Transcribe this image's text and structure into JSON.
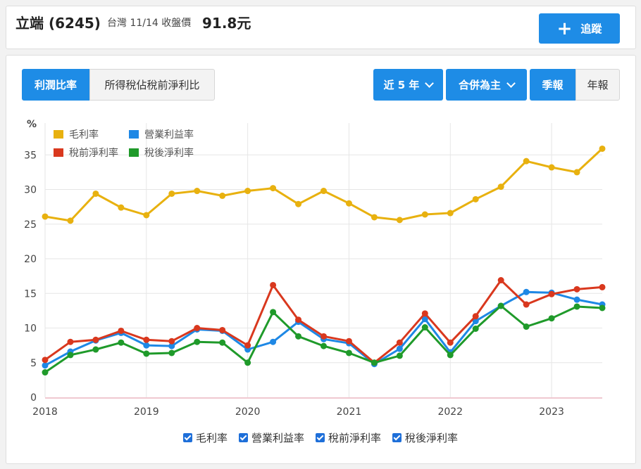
{
  "header": {
    "name": "立端",
    "code": "(6245)",
    "subtitle": "台灣 11/14 收盤價",
    "price": "91.8元",
    "follow_label": "追蹤"
  },
  "tabs": {
    "profit_ratio": "利潤比率",
    "tax_ratio": "所得稅佔稅前淨利比"
  },
  "controls": {
    "period": "近 5 年",
    "consolidation": "合併為主",
    "quarterly": "季報",
    "annual": "年報"
  },
  "colors": {
    "accent": "#1e8ce6",
    "gross": "#e8b10f",
    "operating": "#1e88e5",
    "pretax": "#d9381e",
    "aftertax": "#1f9a2a"
  },
  "chart_data": {
    "type": "line",
    "ylabel": "%",
    "ylim": [
      0,
      38
    ],
    "yticks": [
      0,
      5,
      10,
      15,
      20,
      25,
      30,
      35
    ],
    "xlim": [
      2018.0,
      2023.5
    ],
    "xticks": [
      "2018",
      "2019",
      "2020",
      "2021",
      "2022",
      "2023"
    ],
    "grid": true,
    "legend_position": "top-left",
    "x": [
      2018.0,
      2018.25,
      2018.5,
      2018.75,
      2019.0,
      2019.25,
      2019.5,
      2019.75,
      2020.0,
      2020.25,
      2020.5,
      2020.75,
      2021.0,
      2021.25,
      2021.5,
      2021.75,
      2022.0,
      2022.25,
      2022.5,
      2022.75,
      2023.0,
      2023.25,
      2023.5
    ],
    "series": [
      {
        "name": "毛利率",
        "color": "#e8b10f",
        "values": [
          26.1,
          25.5,
          29.4,
          27.4,
          26.3,
          29.4,
          29.8,
          29.1,
          29.8,
          30.2,
          27.9,
          29.8,
          28.0,
          26.0,
          25.6,
          26.4,
          26.6,
          28.6,
          30.4,
          34.1,
          33.2,
          32.5,
          35.9
        ]
      },
      {
        "name": "營業利益率",
        "color": "#1e88e5",
        "values": [
          4.6,
          6.6,
          8.2,
          9.3,
          7.5,
          7.4,
          9.8,
          9.6,
          6.9,
          8.0,
          10.9,
          8.4,
          7.8,
          4.8,
          7.0,
          11.3,
          6.5,
          11.0,
          13.2,
          15.2,
          15.1,
          14.1,
          13.4
        ]
      },
      {
        "name": "稅前淨利率",
        "color": "#d9381e",
        "values": [
          5.4,
          8.0,
          8.3,
          9.6,
          8.3,
          8.1,
          10.0,
          9.7,
          7.5,
          16.2,
          11.2,
          8.8,
          8.1,
          5.0,
          7.9,
          12.1,
          7.9,
          11.7,
          16.9,
          13.4,
          14.9,
          15.6,
          15.9
        ]
      },
      {
        "name": "稅後淨利率",
        "color": "#1f9a2a",
        "values": [
          3.6,
          6.1,
          6.9,
          7.9,
          6.3,
          6.4,
          8.0,
          7.9,
          5.0,
          12.3,
          8.8,
          7.4,
          6.4,
          5.0,
          6.0,
          10.1,
          6.1,
          9.9,
          13.2,
          10.2,
          11.4,
          13.1,
          12.9
        ]
      }
    ]
  },
  "toggles": [
    "毛利率",
    "營業利益率",
    "稅前淨利率",
    "稅後淨利率"
  ]
}
